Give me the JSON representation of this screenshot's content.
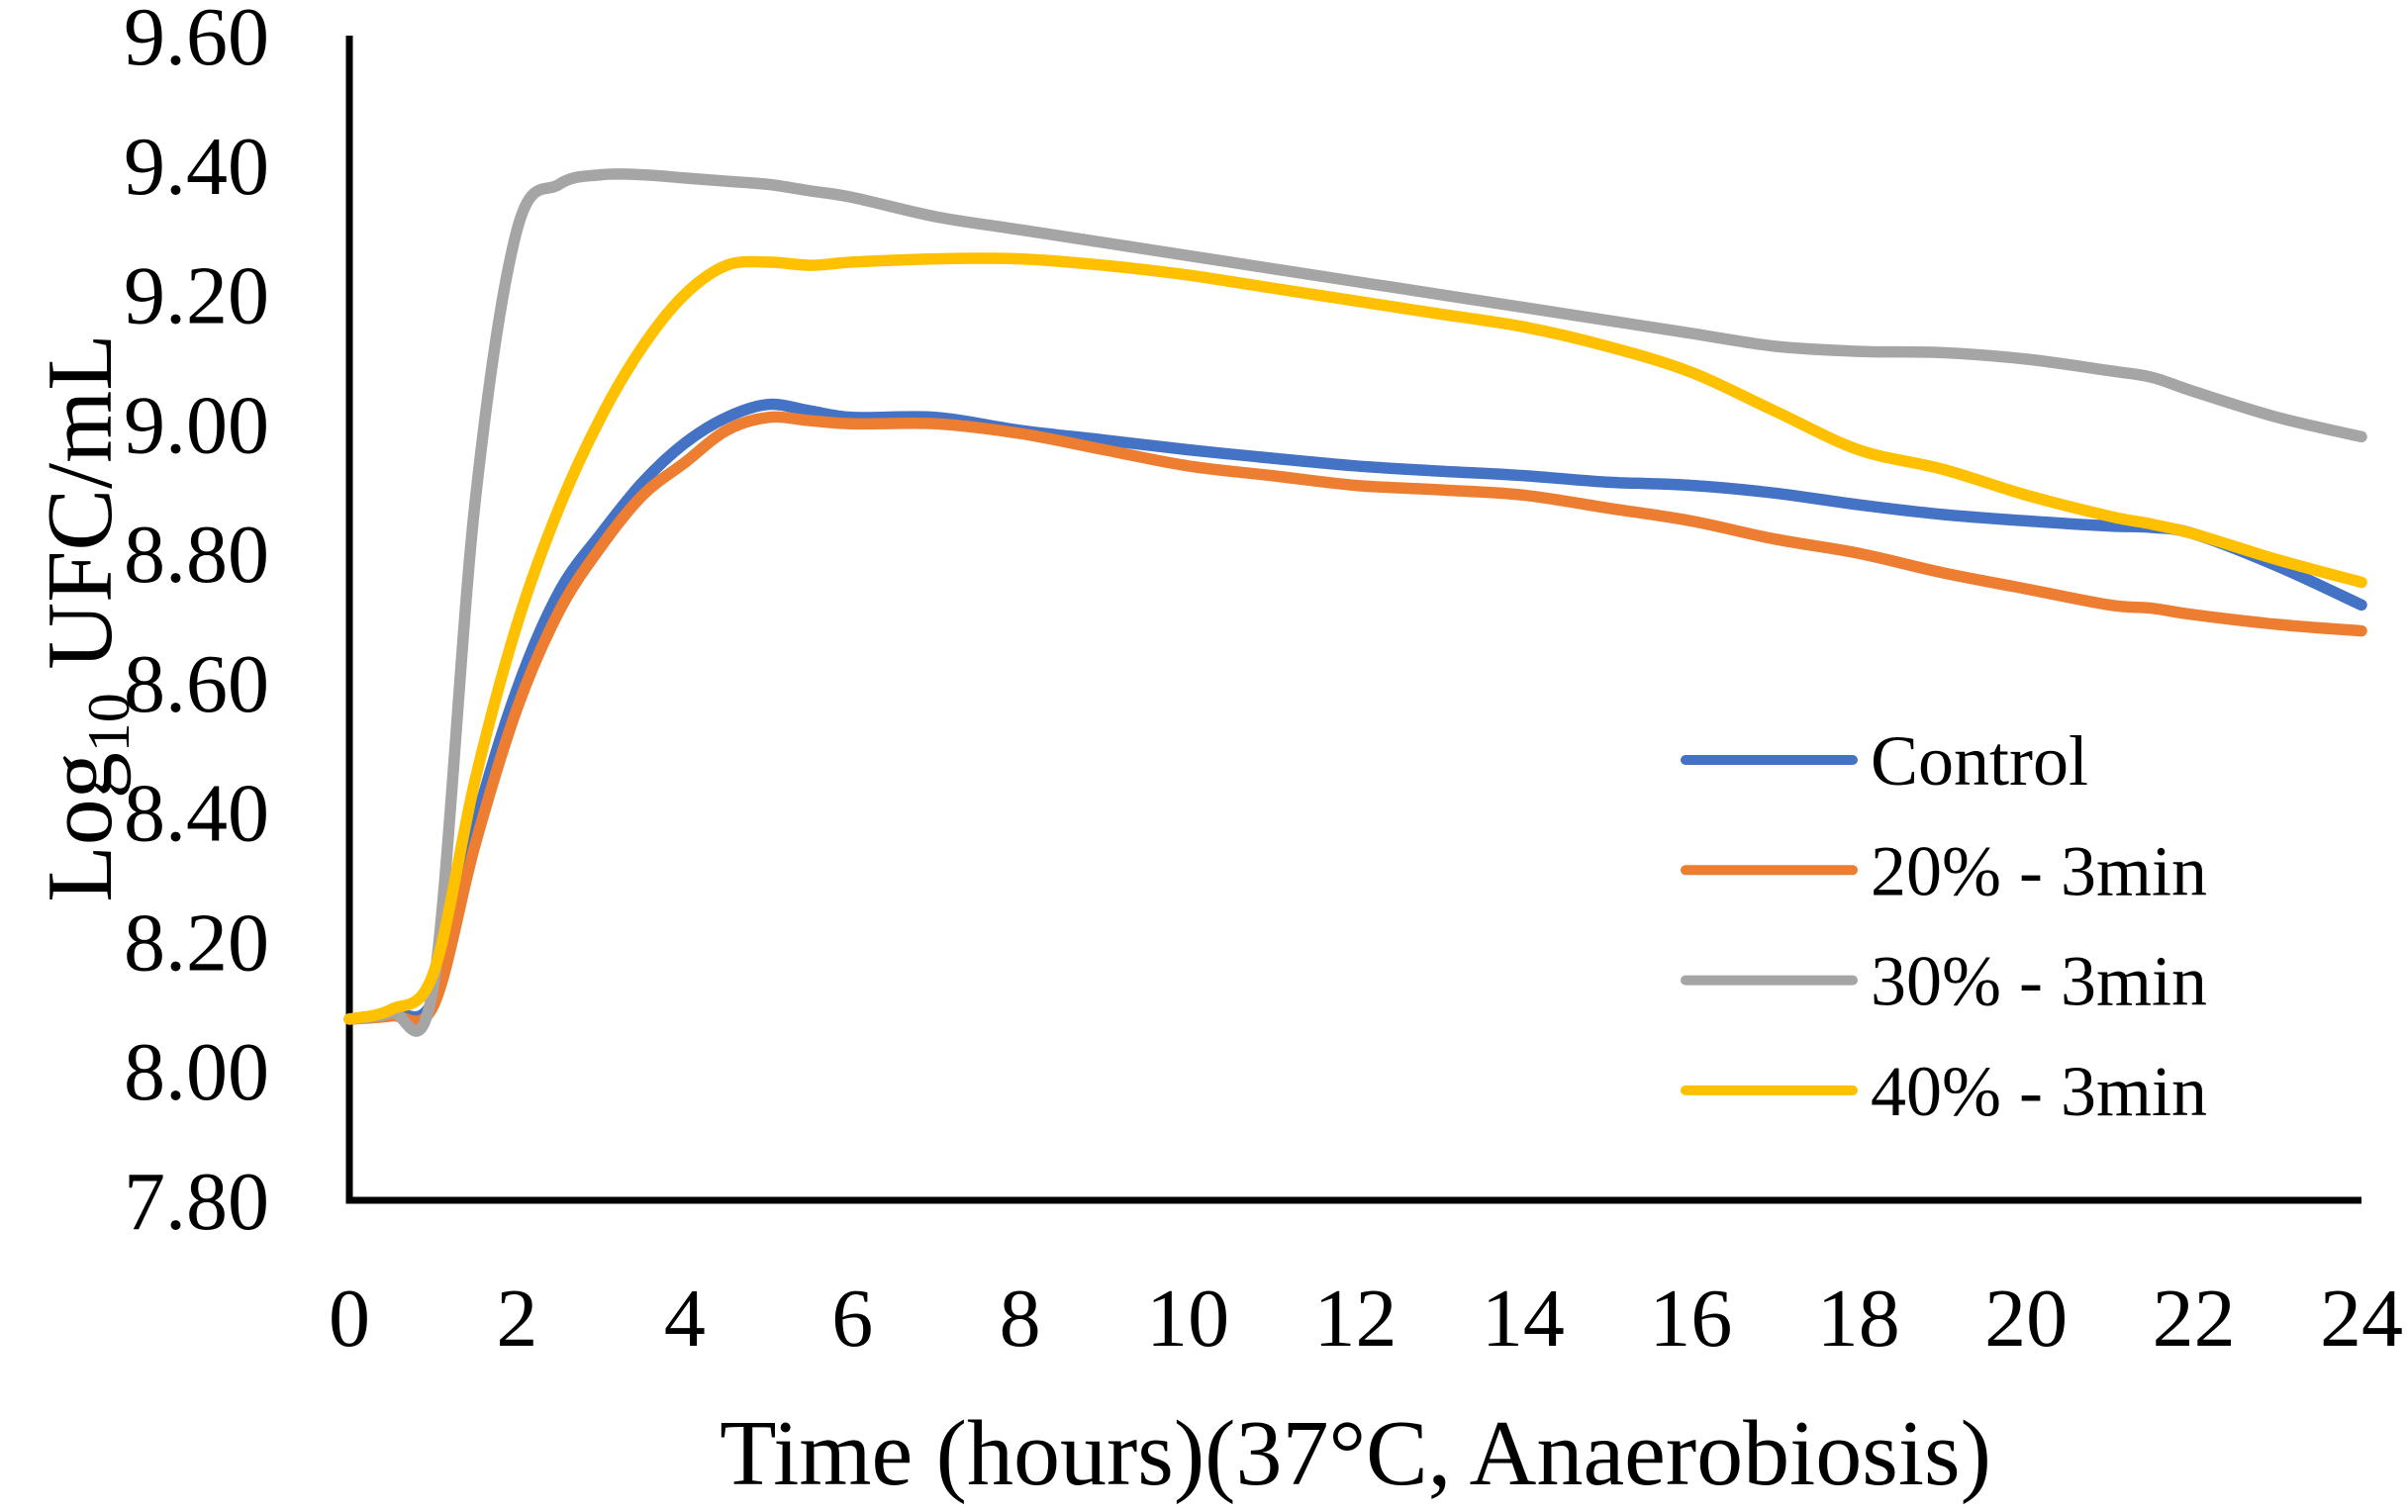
{
  "chart_data": {
    "type": "line",
    "title": "",
    "xlabel": "Time (hours)(37°C, Anaerobiosis)",
    "ylabel": {
      "prefix": "Log",
      "subscript": "10",
      "suffix": " UFC/mL"
    },
    "xlim": [
      0,
      24
    ],
    "ylim": [
      7.8,
      9.6
    ],
    "grid": false,
    "legend_position": "inside-right",
    "x_ticks": [
      0,
      2,
      4,
      6,
      8,
      10,
      12,
      14,
      16,
      18,
      20,
      22,
      24
    ],
    "y_ticks": [
      "9.60",
      "9.40",
      "9.20",
      "9.00",
      "8.80",
      "8.60",
      "8.40",
      "8.20",
      "8.00",
      "7.80"
    ],
    "x": [
      0,
      0.5,
      1,
      1.5,
      2,
      2.5,
      3,
      3.5,
      4,
      4.5,
      5,
      5.5,
      6,
      7,
      8,
      9,
      10,
      11,
      12,
      13,
      14,
      15,
      16,
      17,
      18,
      19,
      20,
      21,
      21.5,
      22,
      23,
      24
    ],
    "series": [
      {
        "name": "Control",
        "color": "#4472C4",
        "values": [
          8.08,
          8.09,
          8.11,
          8.38,
          8.59,
          8.74,
          8.83,
          8.91,
          8.97,
          9.01,
          9.03,
          9.02,
          9.01,
          9.01,
          8.99,
          8.975,
          8.96,
          8.947,
          8.935,
          8.927,
          8.92,
          8.91,
          8.905,
          8.893,
          8.875,
          8.86,
          8.85,
          8.842,
          8.84,
          8.83,
          8.78,
          8.72
        ]
      },
      {
        "name": "20% - 3min",
        "color": "#ED7D31",
        "values": [
          8.08,
          8.085,
          8.1,
          8.35,
          8.56,
          8.71,
          8.81,
          8.89,
          8.94,
          8.99,
          9.01,
          9.005,
          9.0,
          9.0,
          8.985,
          8.96,
          8.935,
          8.92,
          8.905,
          8.898,
          8.89,
          8.87,
          8.85,
          8.822,
          8.8,
          8.77,
          8.745,
          8.72,
          8.715,
          8.705,
          8.69,
          8.68
        ]
      },
      {
        "name": "30% - 3min",
        "color": "#A5A5A5",
        "values": [
          8.08,
          8.09,
          8.13,
          8.88,
          9.3,
          9.37,
          9.385,
          9.385,
          9.38,
          9.375,
          9.37,
          9.36,
          9.35,
          9.32,
          9.3,
          9.28,
          9.26,
          9.24,
          9.22,
          9.2,
          9.18,
          9.16,
          9.14,
          9.12,
          9.112,
          9.11,
          9.1,
          9.082,
          9.072,
          9.05,
          9.01,
          8.98
        ]
      },
      {
        "name": "40% - 3min",
        "color": "#FFC000",
        "values": [
          8.08,
          8.095,
          8.15,
          8.45,
          8.69,
          8.87,
          9.01,
          9.12,
          9.2,
          9.245,
          9.25,
          9.245,
          9.25,
          9.255,
          9.255,
          9.245,
          9.23,
          9.21,
          9.19,
          9.17,
          9.15,
          9.12,
          9.08,
          9.02,
          8.96,
          8.93,
          8.89,
          8.857,
          8.845,
          8.83,
          8.79,
          8.755
        ]
      }
    ]
  },
  "colors": {
    "axis": "#000000",
    "text": "#000000",
    "background": "#FFFFFF"
  }
}
